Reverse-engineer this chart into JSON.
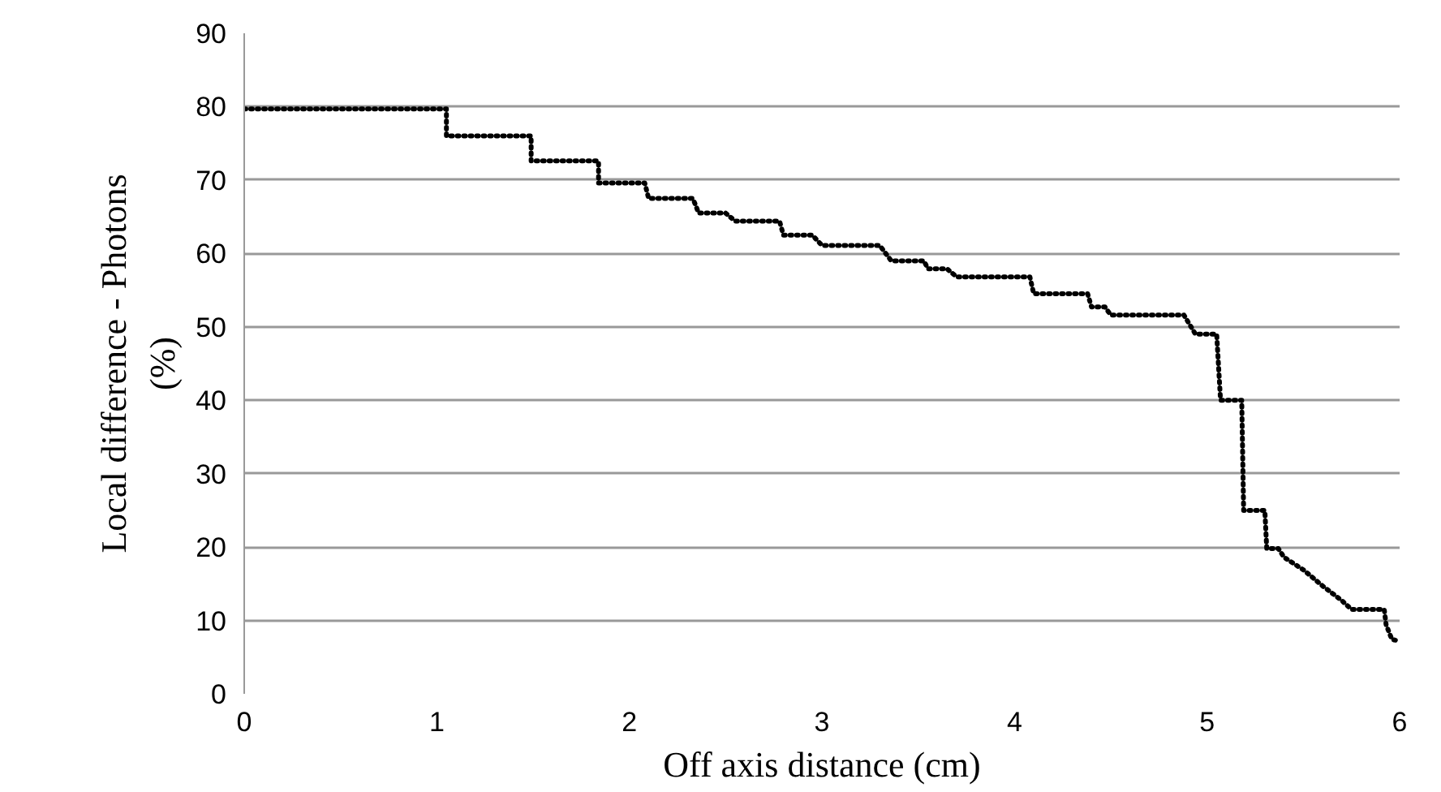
{
  "chart_data": {
    "type": "line",
    "xlabel": "Off axis distance (cm)",
    "ylabel": "Local difference - Photons\n(%)",
    "x": [
      0,
      1.05,
      1.05,
      1.49,
      1.49,
      1.84,
      1.84,
      2.08,
      2.1,
      2.33,
      2.36,
      2.5,
      2.55,
      2.78,
      2.8,
      2.95,
      3.0,
      3.3,
      3.36,
      3.53,
      3.55,
      3.65,
      3.7,
      4.08,
      4.1,
      4.38,
      4.4,
      4.47,
      4.5,
      4.88,
      4.94,
      5.05,
      5.07,
      5.18,
      5.19,
      5.3,
      5.31,
      5.37,
      5.4,
      5.5,
      5.6,
      5.7,
      5.75,
      5.92,
      5.93,
      5.96,
      6
    ],
    "series": [
      {
        "color": "#000000",
        "values": [
          79.7,
          79.7,
          76,
          76,
          72.6,
          72.6,
          69.6,
          69.6,
          67.5,
          67.5,
          65.5,
          65.5,
          64.4,
          64.4,
          62.5,
          62.5,
          61.1,
          61.1,
          59,
          59,
          57.9,
          57.9,
          56.8,
          56.8,
          54.5,
          54.5,
          52.7,
          52.7,
          51.6,
          51.6,
          49,
          49,
          40,
          40,
          25,
          25,
          19.8,
          19.8,
          18.6,
          16.9,
          14.7,
          12.7,
          11.5,
          11.5,
          9.4,
          7.4,
          7.2
        ]
      }
    ],
    "xlim": [
      0,
      6
    ],
    "xticks": [
      0,
      1,
      2,
      3,
      4,
      5,
      6
    ],
    "ylim": [
      0,
      90
    ],
    "yticks": [
      0,
      10,
      20,
      30,
      40,
      50,
      60,
      70,
      80,
      90
    ],
    "grid": "y",
    "line_style": "dotted"
  }
}
